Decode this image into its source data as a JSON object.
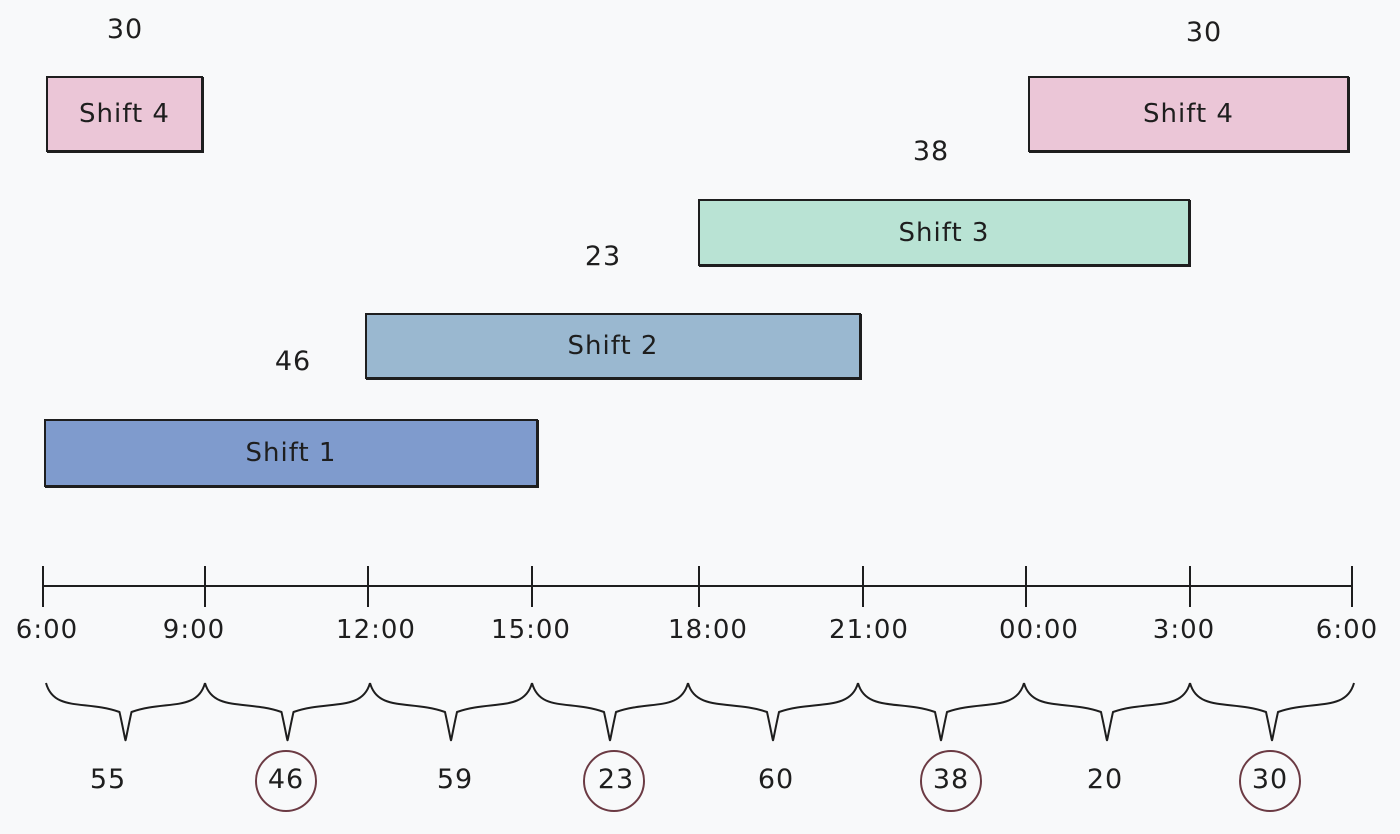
{
  "colors": {
    "shift1": "#7f9bcd",
    "shift2": "#9ab8d0",
    "shift3": "#b9e3d4",
    "shift4": "#ebc6d7",
    "stroke": "#1e1e1e",
    "circle": "#6b3a43"
  },
  "shifts": [
    {
      "label": "Shift 4",
      "count": "30",
      "color": "#ebc6d7"
    },
    {
      "label": "Shift 4",
      "count": "30",
      "color": "#ebc6d7"
    },
    {
      "label": "Shift 3",
      "count": "38",
      "color": "#b9e3d4"
    },
    {
      "label": "Shift 2",
      "count": "23",
      "color": "#9ab8d0"
    },
    {
      "label": "Shift 1",
      "count": "46",
      "color": "#7f9bcd"
    }
  ],
  "timeline": {
    "ticks": [
      "6:00",
      "9:00",
      "12:00",
      "15:00",
      "18:00",
      "21:00",
      "00:00",
      "3:00",
      "6:00"
    ]
  },
  "slots": [
    {
      "value": "55",
      "circled": false
    },
    {
      "value": "46",
      "circled": true
    },
    {
      "value": "59",
      "circled": false
    },
    {
      "value": "23",
      "circled": true
    },
    {
      "value": "60",
      "circled": false
    },
    {
      "value": "38",
      "circled": true
    },
    {
      "value": "20",
      "circled": false
    },
    {
      "value": "30",
      "circled": true
    }
  ]
}
